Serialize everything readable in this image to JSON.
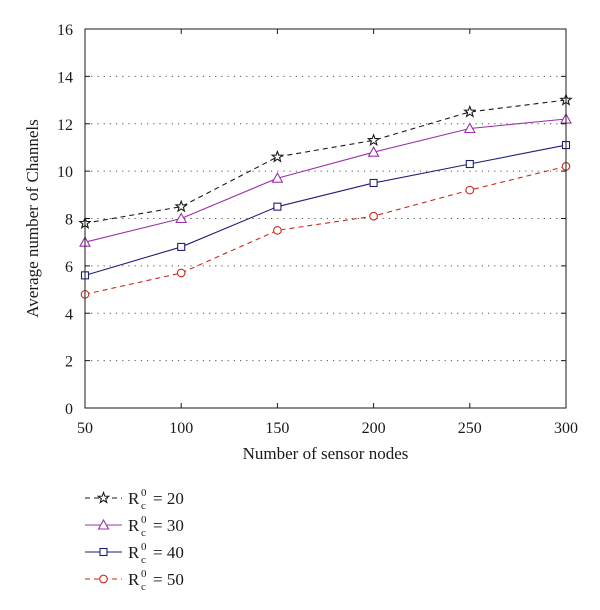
{
  "chart_data": {
    "type": "line",
    "title": "",
    "xlabel": "Number of sensor nodes",
    "ylabel": "Average number of Channels",
    "xlim": [
      50,
      300
    ],
    "ylim": [
      0,
      16
    ],
    "x": [
      50,
      100,
      150,
      200,
      250,
      300
    ],
    "xticks": [
      50,
      100,
      150,
      200,
      250,
      300
    ],
    "yticks": [
      0,
      2,
      4,
      6,
      8,
      10,
      12,
      14,
      16
    ],
    "grid": "horizontal dotted",
    "legend_position": "below-left",
    "series": [
      {
        "name": "R_c^0 = 20",
        "legend_base": "R",
        "legend_sup": "0",
        "legend_sub": "c",
        "legend_value": "= 20",
        "values": [
          7.8,
          8.5,
          10.6,
          11.3,
          12.5,
          13.0
        ],
        "color": "#1a1a1a",
        "dash": "dashed",
        "marker": "star"
      },
      {
        "name": "R_c^0 = 30",
        "legend_base": "R",
        "legend_sup": "0",
        "legend_sub": "c",
        "legend_value": "= 30",
        "values": [
          7.0,
          8.0,
          9.7,
          10.8,
          11.8,
          12.2
        ],
        "color": "#9b30a8",
        "dash": "solid",
        "marker": "triangle"
      },
      {
        "name": "R_c^0 = 40",
        "legend_base": "R",
        "legend_sup": "0",
        "legend_sub": "c",
        "legend_value": "= 40",
        "values": [
          5.6,
          6.8,
          8.5,
          9.5,
          10.3,
          11.1
        ],
        "color": "#1f1f7a",
        "dash": "solid",
        "marker": "square"
      },
      {
        "name": "R_c^0 = 50",
        "legend_base": "R",
        "legend_sup": "0",
        "legend_sub": "c",
        "legend_value": "= 50",
        "values": [
          4.8,
          5.7,
          7.5,
          8.1,
          9.2,
          10.2
        ],
        "color": "#cc2a1a",
        "dash": "dashed",
        "marker": "circle"
      }
    ]
  }
}
